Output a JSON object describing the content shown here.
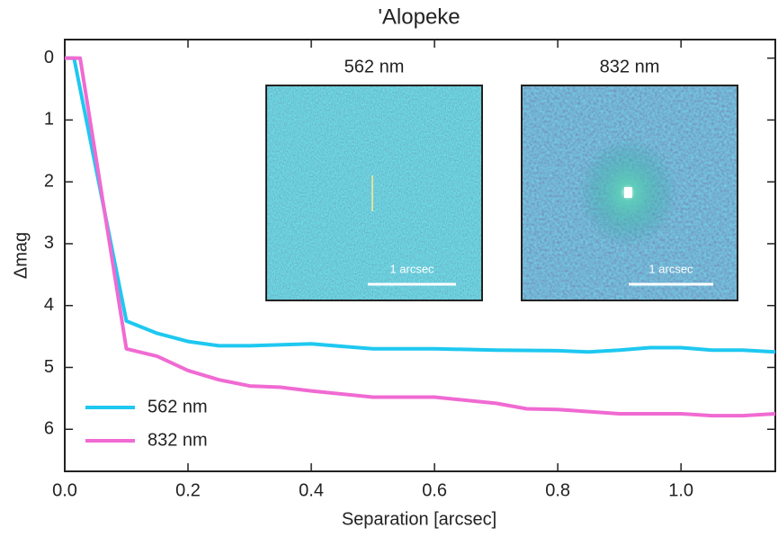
{
  "chart_data": {
    "type": "line",
    "title": "'Alopeke",
    "xlabel": "Separation [arcsec]",
    "ylabel": "Δmag",
    "xlim": [
      0,
      1.153
    ],
    "ylim": [
      -0.3,
      6.68
    ],
    "y_inverted": true,
    "xticks": [
      {
        "value": 0,
        "label": "0.0"
      },
      0.2,
      0.4,
      0.6,
      0.8,
      {
        "value": 1,
        "label": "1.0"
      }
    ],
    "yticks": [
      0,
      1,
      2,
      3,
      4,
      5,
      6
    ],
    "legend": "lower left",
    "series": [
      {
        "name": "562 nm",
        "color": "#1ec8f0",
        "x": [
          0,
          0.015,
          0.1,
          0.15,
          0.2,
          0.25,
          0.3,
          0.4,
          0.5,
          0.6,
          0.7,
          0.8,
          0.85,
          0.9,
          0.95,
          1.0,
          1.05,
          1.1,
          1.153
        ],
        "values": [
          0,
          0,
          4.25,
          4.45,
          4.58,
          4.65,
          4.65,
          4.62,
          4.7,
          4.7,
          4.72,
          4.73,
          4.75,
          4.72,
          4.68,
          4.68,
          4.72,
          4.72,
          4.75
        ]
      },
      {
        "name": "832 nm",
        "color": "#f06ad2",
        "x": [
          0,
          0.025,
          0.1,
          0.15,
          0.2,
          0.25,
          0.3,
          0.35,
          0.4,
          0.5,
          0.6,
          0.7,
          0.75,
          0.8,
          0.9,
          1.0,
          1.05,
          1.1,
          1.153
        ],
        "values": [
          0,
          0,
          4.7,
          4.82,
          5.05,
          5.2,
          5.3,
          5.32,
          5.38,
          5.48,
          5.48,
          5.58,
          5.67,
          5.68,
          5.75,
          5.75,
          5.78,
          5.78,
          5.75
        ]
      }
    ],
    "insets": [
      {
        "title": "562 nm",
        "scale_label": "1 arcsec"
      },
      {
        "title": "832 nm",
        "scale_label": "1 arcsec"
      }
    ]
  }
}
